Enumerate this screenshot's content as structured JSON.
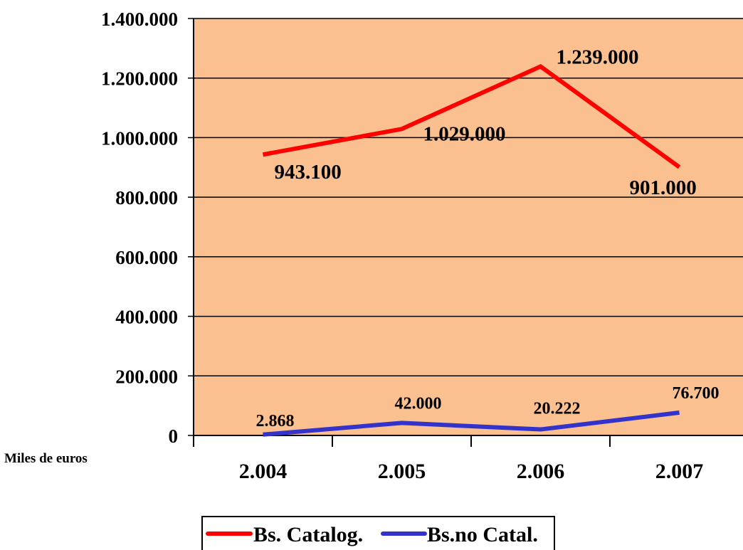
{
  "chart_data": {
    "type": "line",
    "categories": [
      "2.004",
      "2.005",
      "2.006",
      "2.007"
    ],
    "ylim": [
      0,
      1400000
    ],
    "yticks": [
      0,
      200000,
      400000,
      600000,
      800000,
      1000000,
      1200000,
      1400000
    ],
    "ytick_labels": [
      "0",
      "200.000",
      "400.000",
      "600.000",
      "800.000",
      "1.000.000",
      "1.200.000",
      "1.400.000"
    ],
    "unit_label": "Miles de euros",
    "grid": true,
    "legend_position": "bottom",
    "plot_background": "#FAC090",
    "series": [
      {
        "name": "Bs. Catalog.",
        "color": "#FF0000",
        "values": [
          943100,
          1029000,
          1239000,
          901000
        ],
        "labels": [
          "943.100",
          "1.029.000",
          "1.239.000",
          "901.000"
        ]
      },
      {
        "name": "Bs.no Catal.",
        "color": "#3333CC",
        "values": [
          2868,
          42000,
          20222,
          76700
        ],
        "labels": [
          "2.868",
          "42.000",
          "20.222",
          "76.700"
        ]
      }
    ]
  }
}
